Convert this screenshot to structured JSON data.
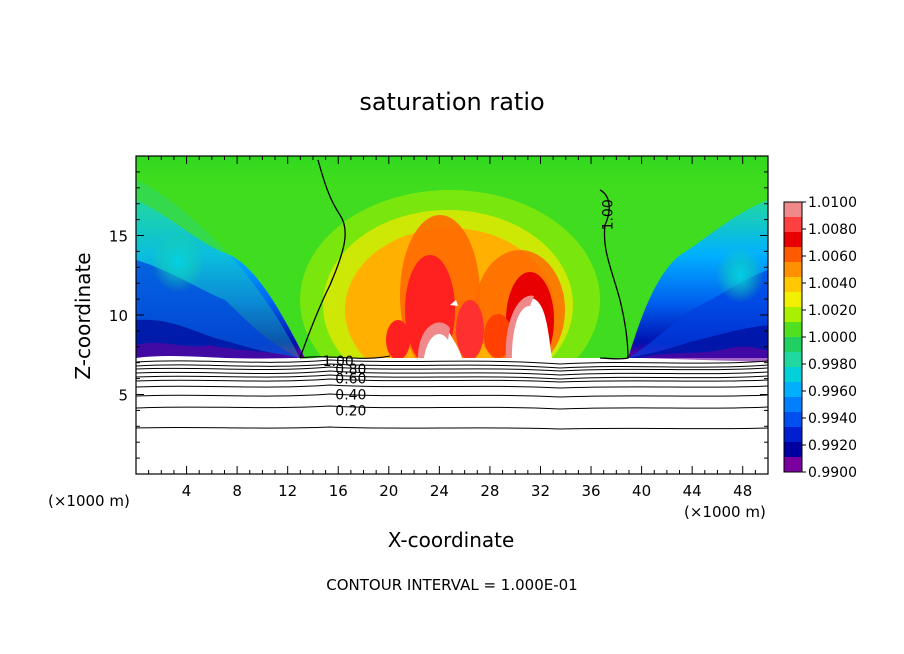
{
  "chart_data": {
    "type": "heatmap",
    "title": "saturation ratio",
    "xlabel": "X-coordinate",
    "ylabel": "Z-coordinate",
    "x_unit": "(×1000 m)",
    "y_unit": "(×1000 m)",
    "xlim": [
      0,
      50
    ],
    "ylim": [
      0,
      20
    ],
    "xticks": [
      4,
      8,
      12,
      16,
      20,
      24,
      28,
      32,
      36,
      40,
      44,
      48
    ],
    "yticks": [
      5,
      10,
      15
    ],
    "colorbar": {
      "levels": [
        "1.0100",
        "1.0080",
        "1.0060",
        "1.0040",
        "1.0020",
        "1.0000",
        "0.9980",
        "0.9960",
        "0.9940",
        "0.9920",
        "0.9900"
      ],
      "colors": [
        "#f08a8a",
        "#ff4040",
        "#e80000",
        "#ff5a00",
        "#ff9000",
        "#ffc800",
        "#f0f000",
        "#a8f000",
        "#50e020",
        "#20d060",
        "#20d8a0",
        "#00d0d8",
        "#00b0ff",
        "#0080ff",
        "#0050f0",
        "#0020d0",
        "#0000a0",
        "#7a00a0"
      ]
    },
    "contour_labels": [
      {
        "text": "1.00",
        "x": 37.3,
        "z": 16.3,
        "rotate": -90
      },
      {
        "text": "1.00",
        "x": 16.0,
        "z": 7.1
      },
      {
        "text": "0.80",
        "x": 17.0,
        "z": 6.6
      },
      {
        "text": "0.60",
        "x": 17.0,
        "z": 6.0
      },
      {
        "text": "0.40",
        "x": 17.0,
        "z": 5.0
      },
      {
        "text": "0.20",
        "x": 17.0,
        "z": 4.0
      }
    ],
    "contour_interval": "CONTOUR INTERVAL = 1.000E-01"
  }
}
